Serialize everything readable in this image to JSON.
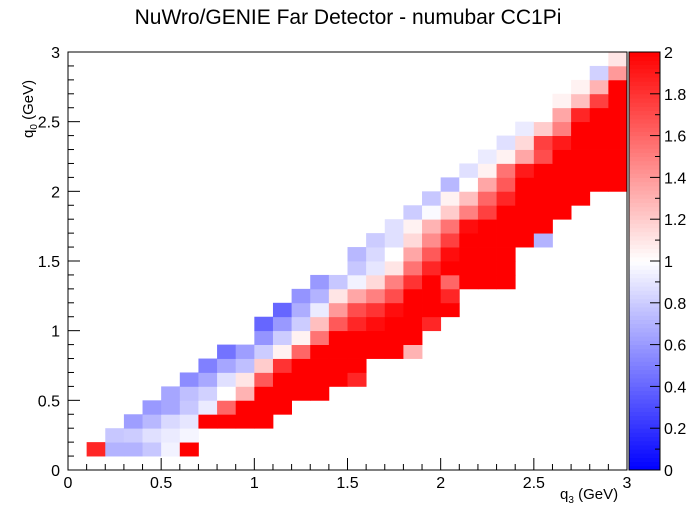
{
  "chart_data": {
    "type": "heatmap",
    "title": "NuWro/GENIE Far Detector - numubar CC1Pi",
    "xlabel": "q",
    "xlabel_sub": "3",
    "xlabel_unit": " (GeV)",
    "ylabel": "q",
    "ylabel_sub": "0",
    "ylabel_unit": " (GeV)",
    "xlim": [
      0,
      3
    ],
    "ylim": [
      0,
      3
    ],
    "xbins": 30,
    "ybins": 30,
    "zlim": [
      0,
      2
    ],
    "xticks": [
      "0",
      "0.5",
      "1",
      "1.5",
      "2",
      "2.5",
      "3"
    ],
    "yticks": [
      "0",
      "0.5",
      "1",
      "1.5",
      "2",
      "2.5",
      "3"
    ],
    "zticks": [
      "0",
      "0.2",
      "0.4",
      "0.6",
      "0.8",
      "1",
      "1.2",
      "1.4",
      "1.6",
      "1.8",
      "2"
    ],
    "colors": {
      "low": "#0000ff",
      "mid": "#ffffff",
      "high": "#ff0000"
    },
    "cells": [
      [
        0.1,
        0.1,
        1.85
      ],
      [
        0.2,
        0.1,
        0.7
      ],
      [
        0.3,
        0.1,
        0.7
      ],
      [
        0.4,
        0.1,
        0.78
      ],
      [
        0.5,
        0.1,
        0.95
      ],
      [
        0.6,
        0.1,
        2.0
      ],
      [
        0.2,
        0.2,
        0.78
      ],
      [
        0.3,
        0.2,
        0.8
      ],
      [
        0.4,
        0.2,
        0.88
      ],
      [
        0.5,
        0.2,
        0.92
      ],
      [
        0.6,
        0.2,
        0.96
      ],
      [
        0.3,
        0.3,
        0.62
      ],
      [
        0.4,
        0.3,
        0.72
      ],
      [
        0.5,
        0.3,
        0.85
      ],
      [
        0.6,
        0.3,
        0.9
      ],
      [
        0.7,
        0.3,
        2.0
      ],
      [
        0.8,
        0.3,
        2.0
      ],
      [
        0.9,
        0.3,
        2.0
      ],
      [
        1.0,
        0.3,
        2.0
      ],
      [
        0.4,
        0.4,
        0.6
      ],
      [
        0.5,
        0.4,
        0.65
      ],
      [
        0.6,
        0.4,
        0.78
      ],
      [
        0.7,
        0.4,
        0.92
      ],
      [
        0.8,
        0.4,
        1.6
      ],
      [
        0.9,
        0.4,
        2.0
      ],
      [
        1.0,
        0.4,
        2.0
      ],
      [
        1.1,
        0.4,
        2.0
      ],
      [
        0.5,
        0.5,
        0.65
      ],
      [
        0.6,
        0.5,
        0.75
      ],
      [
        0.7,
        0.5,
        0.82
      ],
      [
        0.8,
        0.5,
        1.0
      ],
      [
        0.9,
        0.5,
        1.3
      ],
      [
        1.0,
        0.5,
        2.0
      ],
      [
        1.1,
        0.5,
        2.0
      ],
      [
        1.2,
        0.5,
        2.0
      ],
      [
        1.3,
        0.5,
        2.0
      ],
      [
        0.6,
        0.6,
        0.55
      ],
      [
        0.7,
        0.6,
        0.66
      ],
      [
        0.8,
        0.6,
        0.88
      ],
      [
        0.9,
        0.6,
        1.1
      ],
      [
        1.0,
        0.6,
        1.65
      ],
      [
        1.1,
        0.6,
        2.0
      ],
      [
        1.2,
        0.6,
        2.0
      ],
      [
        1.3,
        0.6,
        2.0
      ],
      [
        1.4,
        0.6,
        2.0
      ],
      [
        1.5,
        0.6,
        1.85
      ],
      [
        0.7,
        0.7,
        0.5
      ],
      [
        0.8,
        0.7,
        0.65
      ],
      [
        0.9,
        0.7,
        0.75
      ],
      [
        1.0,
        0.7,
        1.2
      ],
      [
        1.1,
        0.7,
        1.8
      ],
      [
        1.2,
        0.7,
        2.0
      ],
      [
        1.3,
        0.7,
        2.0
      ],
      [
        1.4,
        0.7,
        2.0
      ],
      [
        1.5,
        0.7,
        2.0
      ],
      [
        0.8,
        0.8,
        0.45
      ],
      [
        0.9,
        0.8,
        0.62
      ],
      [
        1.0,
        0.8,
        0.8
      ],
      [
        1.1,
        0.8,
        1.05
      ],
      [
        1.2,
        0.8,
        1.6
      ],
      [
        1.3,
        0.8,
        2.0
      ],
      [
        1.4,
        0.8,
        2.0
      ],
      [
        1.5,
        0.8,
        2.0
      ],
      [
        1.6,
        0.8,
        2.0
      ],
      [
        1.7,
        0.8,
        2.0
      ],
      [
        1.8,
        0.8,
        1.3
      ],
      [
        1.0,
        0.9,
        0.58
      ],
      [
        1.1,
        0.9,
        0.8
      ],
      [
        1.2,
        0.9,
        1.05
      ],
      [
        1.3,
        0.9,
        1.55
      ],
      [
        1.4,
        0.9,
        2.0
      ],
      [
        1.5,
        0.9,
        2.0
      ],
      [
        1.6,
        0.9,
        2.0
      ],
      [
        1.7,
        0.9,
        2.0
      ],
      [
        1.8,
        0.9,
        2.0
      ],
      [
        1.0,
        1.0,
        0.4
      ],
      [
        1.1,
        1.0,
        0.6
      ],
      [
        1.2,
        1.0,
        0.8
      ],
      [
        1.3,
        1.0,
        1.25
      ],
      [
        1.4,
        1.0,
        1.65
      ],
      [
        1.5,
        1.0,
        1.85
      ],
      [
        1.6,
        1.0,
        1.95
      ],
      [
        1.7,
        1.0,
        2.0
      ],
      [
        1.8,
        1.0,
        2.0
      ],
      [
        1.9,
        1.0,
        1.85
      ],
      [
        1.1,
        1.1,
        0.4
      ],
      [
        1.2,
        1.1,
        0.68
      ],
      [
        1.3,
        1.1,
        0.92
      ],
      [
        1.4,
        1.1,
        1.4
      ],
      [
        1.5,
        1.1,
        1.7
      ],
      [
        1.6,
        1.1,
        1.8
      ],
      [
        1.7,
        1.1,
        1.95
      ],
      [
        1.8,
        1.1,
        2.0
      ],
      [
        1.9,
        1.1,
        2.0
      ],
      [
        2.0,
        1.1,
        2.0
      ],
      [
        1.2,
        1.2,
        0.58
      ],
      [
        1.3,
        1.2,
        0.7
      ],
      [
        1.4,
        1.2,
        1.1
      ],
      [
        1.5,
        1.2,
        1.35
      ],
      [
        1.6,
        1.2,
        1.5
      ],
      [
        1.7,
        1.2,
        1.7
      ],
      [
        1.8,
        1.2,
        2.0
      ],
      [
        1.9,
        1.2,
        2.0
      ],
      [
        2.0,
        1.2,
        1.85
      ],
      [
        1.3,
        1.3,
        0.6
      ],
      [
        1.4,
        1.3,
        0.78
      ],
      [
        1.5,
        1.3,
        0.95
      ],
      [
        1.6,
        1.3,
        1.15
      ],
      [
        1.7,
        1.3,
        1.5
      ],
      [
        1.8,
        1.3,
        1.8
      ],
      [
        1.9,
        1.3,
        2.0
      ],
      [
        2.0,
        1.3,
        1.6
      ],
      [
        2.1,
        1.3,
        2.0
      ],
      [
        2.2,
        1.3,
        2.0
      ],
      [
        2.3,
        1.3,
        2.0
      ],
      [
        1.5,
        1.4,
        0.78
      ],
      [
        1.6,
        1.4,
        0.9
      ],
      [
        1.7,
        1.4,
        1.1
      ],
      [
        1.8,
        1.4,
        1.55
      ],
      [
        1.9,
        1.4,
        1.85
      ],
      [
        2.0,
        1.4,
        2.0
      ],
      [
        2.1,
        1.4,
        2.0
      ],
      [
        2.2,
        1.4,
        2.0
      ],
      [
        2.3,
        1.4,
        2.0
      ],
      [
        1.5,
        1.5,
        0.72
      ],
      [
        1.6,
        1.5,
        0.85
      ],
      [
        1.7,
        1.5,
        1.0
      ],
      [
        1.8,
        1.5,
        1.35
      ],
      [
        1.9,
        1.5,
        1.65
      ],
      [
        2.0,
        1.5,
        1.95
      ],
      [
        2.1,
        1.5,
        2.0
      ],
      [
        2.2,
        1.5,
        2.0
      ],
      [
        2.3,
        1.5,
        2.0
      ],
      [
        1.6,
        1.6,
        0.8
      ],
      [
        1.7,
        1.6,
        0.88
      ],
      [
        1.8,
        1.6,
        1.15
      ],
      [
        1.9,
        1.6,
        1.45
      ],
      [
        2.0,
        1.6,
        1.75
      ],
      [
        2.1,
        1.6,
        2.0
      ],
      [
        2.2,
        1.6,
        2.0
      ],
      [
        2.3,
        1.6,
        2.0
      ],
      [
        2.4,
        1.6,
        2.0
      ],
      [
        2.5,
        1.6,
        0.7
      ],
      [
        1.7,
        1.7,
        0.88
      ],
      [
        1.8,
        1.7,
        1.05
      ],
      [
        1.9,
        1.7,
        1.3
      ],
      [
        2.0,
        1.7,
        1.55
      ],
      [
        2.1,
        1.7,
        1.95
      ],
      [
        2.2,
        1.7,
        2.0
      ],
      [
        2.3,
        1.7,
        2.0
      ],
      [
        2.4,
        1.7,
        2.0
      ],
      [
        2.5,
        1.7,
        2.0
      ],
      [
        1.8,
        1.8,
        0.8
      ],
      [
        1.9,
        1.8,
        0.98
      ],
      [
        2.0,
        1.8,
        1.2
      ],
      [
        2.1,
        1.8,
        1.5
      ],
      [
        2.2,
        1.8,
        1.75
      ],
      [
        2.3,
        1.8,
        2.0
      ],
      [
        2.4,
        1.8,
        2.0
      ],
      [
        2.5,
        1.8,
        2.0
      ],
      [
        2.6,
        1.8,
        2.0
      ],
      [
        1.9,
        1.9,
        0.78
      ],
      [
        2.0,
        1.9,
        1.05
      ],
      [
        2.1,
        1.9,
        1.25
      ],
      [
        2.2,
        1.9,
        1.6
      ],
      [
        2.3,
        1.9,
        1.85
      ],
      [
        2.4,
        1.9,
        2.0
      ],
      [
        2.5,
        1.9,
        2.0
      ],
      [
        2.6,
        1.9,
        2.0
      ],
      [
        2.7,
        1.9,
        2.0
      ],
      [
        2.0,
        2.0,
        0.72
      ],
      [
        2.1,
        2.0,
        1.0
      ],
      [
        2.2,
        2.0,
        1.35
      ],
      [
        2.3,
        2.0,
        1.65
      ],
      [
        2.4,
        2.0,
        2.0
      ],
      [
        2.5,
        2.0,
        2.0
      ],
      [
        2.6,
        2.0,
        2.0
      ],
      [
        2.7,
        2.0,
        2.0
      ],
      [
        2.8,
        2.0,
        2.0
      ],
      [
        2.9,
        2.0,
        2.0
      ],
      [
        2.1,
        2.1,
        0.88
      ],
      [
        2.2,
        2.1,
        1.05
      ],
      [
        2.3,
        2.1,
        1.55
      ],
      [
        2.4,
        2.1,
        1.9
      ],
      [
        2.5,
        2.1,
        2.0
      ],
      [
        2.6,
        2.1,
        2.0
      ],
      [
        2.7,
        2.1,
        2.0
      ],
      [
        2.8,
        2.1,
        2.0
      ],
      [
        2.9,
        2.1,
        2.0
      ],
      [
        2.2,
        2.2,
        0.92
      ],
      [
        2.3,
        2.2,
        1.05
      ],
      [
        2.4,
        2.2,
        1.35
      ],
      [
        2.5,
        2.2,
        1.7
      ],
      [
        2.6,
        2.2,
        2.0
      ],
      [
        2.7,
        2.2,
        2.0
      ],
      [
        2.8,
        2.2,
        2.0
      ],
      [
        2.9,
        2.2,
        2.0
      ],
      [
        2.3,
        2.3,
        0.88
      ],
      [
        2.4,
        2.3,
        1.15
      ],
      [
        2.5,
        2.3,
        1.75
      ],
      [
        2.6,
        2.3,
        1.9
      ],
      [
        2.7,
        2.3,
        2.0
      ],
      [
        2.8,
        2.3,
        2.0
      ],
      [
        2.9,
        2.3,
        2.0
      ],
      [
        2.4,
        2.4,
        0.92
      ],
      [
        2.5,
        2.4,
        1.2
      ],
      [
        2.6,
        2.4,
        1.5
      ],
      [
        2.7,
        2.4,
        2.0
      ],
      [
        2.8,
        2.4,
        2.0
      ],
      [
        2.9,
        2.4,
        2.0
      ],
      [
        2.5,
        2.5,
        1.0
      ],
      [
        2.6,
        2.5,
        1.35
      ],
      [
        2.7,
        2.5,
        1.85
      ],
      [
        2.8,
        2.5,
        2.0
      ],
      [
        2.9,
        2.5,
        2.0
      ],
      [
        2.6,
        2.6,
        1.05
      ],
      [
        2.7,
        2.6,
        1.25
      ],
      [
        2.8,
        2.6,
        1.75
      ],
      [
        2.9,
        2.6,
        2.0
      ],
      [
        2.7,
        2.7,
        1.05
      ],
      [
        2.8,
        2.7,
        1.3
      ],
      [
        2.9,
        2.7,
        2.0
      ],
      [
        2.8,
        2.8,
        0.82
      ],
      [
        2.9,
        2.8,
        1.4
      ],
      [
        2.9,
        2.9,
        1.1
      ]
    ]
  }
}
